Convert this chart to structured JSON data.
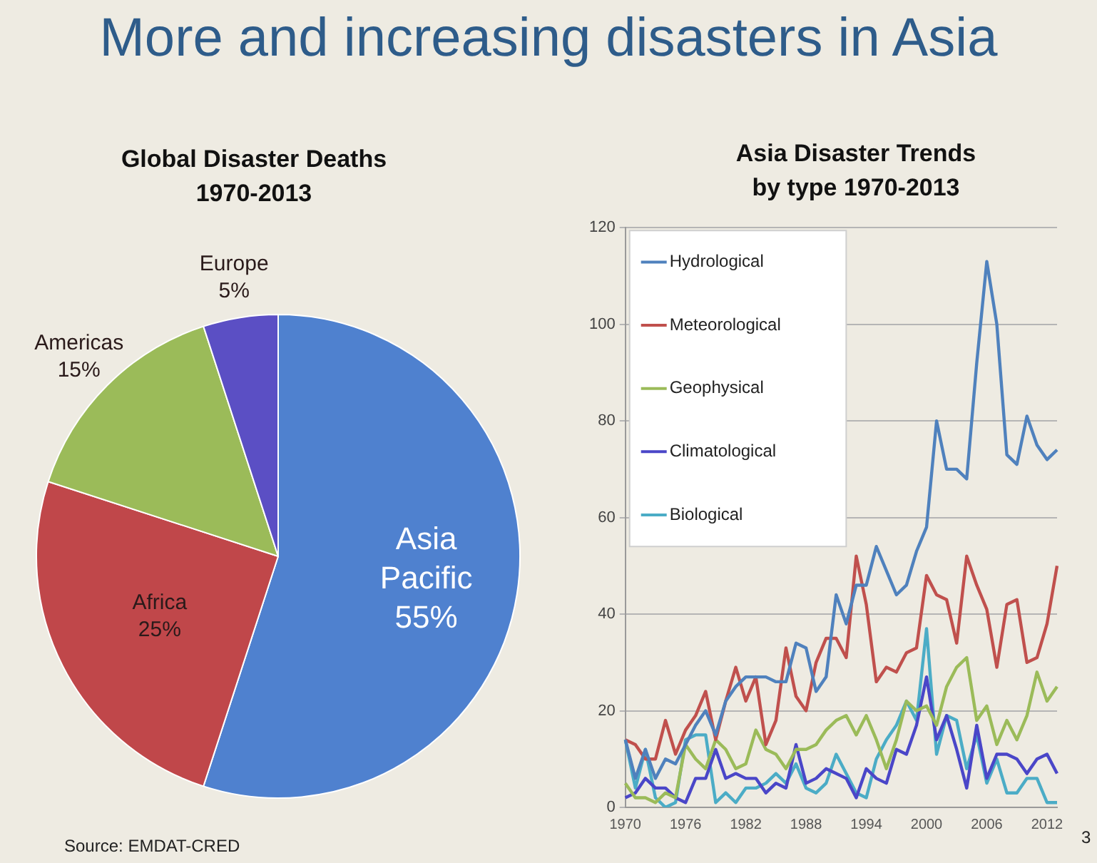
{
  "chart_data": [
    {
      "type": "pie",
      "title": "Global Disaster Deaths 1970-2013",
      "categories": [
        "Asia Pacific",
        "Africa",
        "Americas",
        "Europe"
      ],
      "values": [
        55,
        25,
        15,
        5
      ],
      "value_labels": [
        "55%",
        "25%",
        "15%",
        "5%"
      ],
      "colors": [
        "#4f81cf",
        "#c0474a",
        "#9bbb59",
        "#5b4fc4"
      ],
      "annotations": [
        "More and increasing disasters in Asia",
        "Source: EMDAT-CRED"
      ]
    },
    {
      "type": "line",
      "title": "Asia Disaster Trends by type 1970-2013",
      "categories": [
        "1970",
        null,
        null,
        null,
        null,
        null,
        "1976",
        null,
        null,
        null,
        null,
        null,
        "1982",
        null,
        null,
        null,
        null,
        null,
        "1988",
        null,
        null,
        null,
        null,
        null,
        "1994",
        null,
        null,
        null,
        null,
        null,
        "2000",
        null,
        null,
        null,
        null,
        null,
        "2006",
        null,
        null,
        null,
        null,
        null,
        "2012",
        null
      ],
      "series": [
        {
          "name": "Hydrological",
          "color": "#4f81bd",
          "values": [
            14,
            6,
            12,
            6,
            10,
            9,
            13,
            17,
            20,
            15,
            22,
            25,
            27,
            27,
            27,
            26,
            26,
            34,
            33,
            24,
            27,
            44,
            38,
            46,
            46,
            54,
            49,
            44,
            46,
            53,
            58,
            80,
            70,
            70,
            68,
            92,
            113,
            100,
            73,
            71,
            81,
            75,
            72,
            74
          ]
        },
        {
          "name": "Meteorological",
          "color": "#c0504d",
          "values": [
            14,
            13,
            10,
            10,
            18,
            11,
            16,
            19,
            24,
            14,
            22,
            29,
            22,
            27,
            13,
            18,
            33,
            23,
            20,
            30,
            35,
            35,
            31,
            52,
            42,
            26,
            29,
            28,
            32,
            33,
            48,
            44,
            43,
            34,
            52,
            46,
            41,
            29,
            42,
            43,
            30,
            31,
            38,
            50
          ]
        },
        {
          "name": "Geophysical",
          "color": "#9bbb59",
          "values": [
            5,
            2,
            2,
            1,
            3,
            2,
            13,
            10,
            8,
            14,
            12,
            8,
            9,
            16,
            12,
            11,
            8,
            12,
            12,
            13,
            16,
            18,
            19,
            15,
            19,
            14,
            8,
            14,
            22,
            20,
            21,
            17,
            25,
            29,
            31,
            18,
            21,
            13,
            18,
            14,
            19,
            28,
            22,
            25
          ]
        },
        {
          "name": "Climatological",
          "color": "#4a46c8",
          "values": [
            2,
            3,
            6,
            4,
            4,
            2,
            1,
            6,
            6,
            12,
            6,
            7,
            6,
            6,
            3,
            5,
            4,
            13,
            5,
            6,
            8,
            7,
            6,
            2,
            8,
            6,
            5,
            12,
            11,
            17,
            27,
            14,
            19,
            12,
            4,
            17,
            6,
            11,
            11,
            10,
            7,
            10,
            11,
            7
          ]
        },
        {
          "name": "Biological",
          "color": "#4bacc6",
          "values": [
            14,
            4,
            12,
            2,
            0,
            1,
            14,
            15,
            15,
            1,
            3,
            1,
            4,
            4,
            5,
            7,
            5,
            9,
            4,
            3,
            5,
            11,
            7,
            3,
            2,
            10,
            14,
            17,
            22,
            18,
            37,
            11,
            19,
            18,
            8,
            15,
            5,
            10,
            3,
            3,
            6,
            6,
            1,
            1
          ]
        }
      ],
      "ylim": [
        0,
        120
      ],
      "yticks": [
        0,
        20,
        40,
        60,
        80,
        100,
        120
      ],
      "grid": "y",
      "legend": "top left",
      "marker": "none",
      "line_style": "solid",
      "annotations": [
        "3"
      ]
    }
  ]
}
